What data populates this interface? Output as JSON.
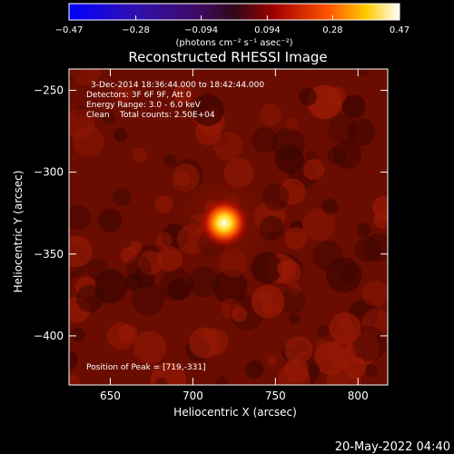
{
  "chart_data": {
    "type": "heatmap",
    "title": "Reconstructed RHESSI Image",
    "xlabel": "Heliocentric X (arcsec)",
    "ylabel": "Heliocentric Y (arcsec)",
    "xlim": [
      625,
      818
    ],
    "ylim": [
      -430,
      -237
    ],
    "x_ticks": [
      650,
      700,
      750,
      800
    ],
    "x_tick_labels": [
      "650",
      "700",
      "750",
      "800"
    ],
    "y_ticks": [
      -250,
      -300,
      -350,
      -400
    ],
    "y_tick_labels": [
      "−250",
      "−300",
      "−350",
      "−400"
    ],
    "colorbar": {
      "min": -0.47,
      "max": 0.47,
      "ticks": [
        -0.47,
        -0.28,
        -0.094,
        0.094,
        0.28,
        0.47
      ],
      "tick_labels": [
        "−0.47",
        "−0.28",
        "−0.094",
        "0.094",
        "0.28",
        "0.47"
      ],
      "units": "(photons cm⁻² s⁻¹ asec⁻²)"
    },
    "annotations": [
      "3-Dec-2014 18:36:44.000 to 18:42:44.000",
      "Detectors: 3F 6F 9F, Att 0",
      "Energy Range: 3.0 - 6.0 keV",
      "Clean    Total counts: 2.50E+04"
    ],
    "peak": {
      "x": 719,
      "y": -331,
      "label": "Position of Peak = [719,-331]"
    },
    "colormap": [
      "#0000ff",
      "#2a00c8",
      "#3b0f70",
      "#000000",
      "#8b0000",
      "#ff6000",
      "#ffff00",
      "#ffffff"
    ]
  },
  "footer": {
    "date": "20-May-2022 04:40"
  }
}
